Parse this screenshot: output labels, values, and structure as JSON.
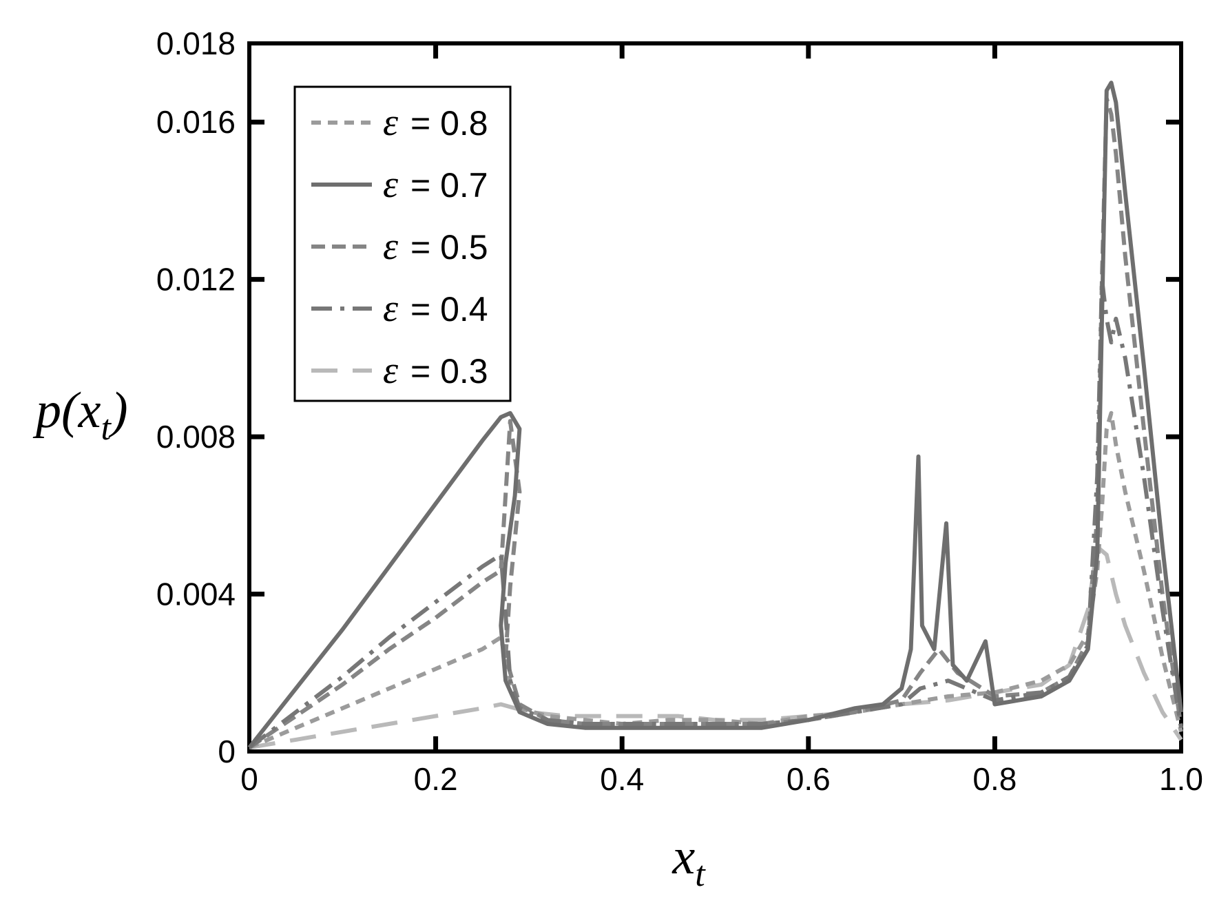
{
  "chart_data": {
    "type": "line",
    "xlabel": "x",
    "xlabel_sub": "t",
    "ylabel_prefix": "p(x",
    "ylabel_sub": "t",
    "ylabel_suffix": ")",
    "xlim": [
      0,
      1.0
    ],
    "ylim": [
      0,
      0.018
    ],
    "xticks": [
      {
        "value": 0,
        "label": "0"
      },
      {
        "value": 0.2,
        "label": "0.2"
      },
      {
        "value": 0.4,
        "label": "0.4"
      },
      {
        "value": 0.6,
        "label": "0.6"
      },
      {
        "value": 0.8,
        "label": "0.8"
      },
      {
        "value": 1.0,
        "label": "1.0"
      }
    ],
    "yticks": [
      {
        "value": 0,
        "label": "0"
      },
      {
        "value": 0.004,
        "label": "0.004"
      },
      {
        "value": 0.008,
        "label": "0.008"
      },
      {
        "value": 0.012,
        "label": "0.012"
      },
      {
        "value": 0.016,
        "label": "0.016"
      },
      {
        "value": 0.018,
        "label": "0.018"
      }
    ],
    "grid": false,
    "legend_position": "top-left",
    "legend_symbol": "ε",
    "series": [
      {
        "name": "ε = 0.8",
        "value_text": "= 0.8",
        "color": "#9b9b9b",
        "dash": "short-dash",
        "points": [
          [
            0.0,
            0.0001
          ],
          [
            0.05,
            0.0006
          ],
          [
            0.1,
            0.0011
          ],
          [
            0.15,
            0.0016
          ],
          [
            0.2,
            0.0021
          ],
          [
            0.25,
            0.0026
          ],
          [
            0.27,
            0.0029
          ],
          [
            0.28,
            0.0018
          ],
          [
            0.29,
            0.0011
          ],
          [
            0.32,
            0.0009
          ],
          [
            0.36,
            0.0008
          ],
          [
            0.4,
            0.0007
          ],
          [
            0.45,
            0.0008
          ],
          [
            0.5,
            0.0008
          ],
          [
            0.55,
            0.0007
          ],
          [
            0.6,
            0.0009
          ],
          [
            0.65,
            0.001
          ],
          [
            0.7,
            0.0012
          ],
          [
            0.75,
            0.0014
          ],
          [
            0.8,
            0.0015
          ],
          [
            0.85,
            0.0018
          ],
          [
            0.88,
            0.0022
          ],
          [
            0.9,
            0.003
          ],
          [
            0.91,
            0.0046
          ],
          [
            0.915,
            0.0062
          ],
          [
            0.92,
            0.0082
          ],
          [
            0.925,
            0.0086
          ],
          [
            0.93,
            0.0078
          ],
          [
            0.94,
            0.0066
          ],
          [
            0.96,
            0.0046
          ],
          [
            0.98,
            0.0024
          ],
          [
            1.0,
            0.0005
          ]
        ]
      },
      {
        "name": "ε = 0.7",
        "value_text": "= 0.7",
        "color": "#6e6e6e",
        "dash": "solid",
        "points": [
          [
            0.0,
            0.0001
          ],
          [
            0.05,
            0.0016
          ],
          [
            0.1,
            0.0031
          ],
          [
            0.15,
            0.0047
          ],
          [
            0.2,
            0.0063
          ],
          [
            0.25,
            0.0079
          ],
          [
            0.27,
            0.0085
          ],
          [
            0.28,
            0.0086
          ],
          [
            0.29,
            0.0082
          ],
          [
            0.285,
            0.0065
          ],
          [
            0.275,
            0.0048
          ],
          [
            0.27,
            0.0032
          ],
          [
            0.275,
            0.0018
          ],
          [
            0.29,
            0.001
          ],
          [
            0.32,
            0.0007
          ],
          [
            0.36,
            0.0006
          ],
          [
            0.4,
            0.0006
          ],
          [
            0.45,
            0.0006
          ],
          [
            0.5,
            0.0006
          ],
          [
            0.55,
            0.0006
          ],
          [
            0.6,
            0.0008
          ],
          [
            0.65,
            0.0011
          ],
          [
            0.68,
            0.0012
          ],
          [
            0.7,
            0.0016
          ],
          [
            0.71,
            0.0026
          ],
          [
            0.718,
            0.0075
          ],
          [
            0.722,
            0.0032
          ],
          [
            0.735,
            0.0026
          ],
          [
            0.748,
            0.0058
          ],
          [
            0.755,
            0.0022
          ],
          [
            0.77,
            0.0018
          ],
          [
            0.79,
            0.0028
          ],
          [
            0.8,
            0.0012
          ],
          [
            0.85,
            0.0014
          ],
          [
            0.88,
            0.0018
          ],
          [
            0.9,
            0.0026
          ],
          [
            0.91,
            0.005
          ],
          [
            0.915,
            0.011
          ],
          [
            0.92,
            0.0168
          ],
          [
            0.925,
            0.017
          ],
          [
            0.93,
            0.0165
          ],
          [
            0.94,
            0.0142
          ],
          [
            0.96,
            0.0098
          ],
          [
            0.98,
            0.0052
          ],
          [
            1.0,
            0.001
          ]
        ]
      },
      {
        "name": "ε = 0.5",
        "value_text": "= 0.5",
        "color": "#858585",
        "dash": "dash",
        "points": [
          [
            0.0,
            0.0001
          ],
          [
            0.05,
            0.0009
          ],
          [
            0.1,
            0.0017
          ],
          [
            0.15,
            0.0026
          ],
          [
            0.2,
            0.0034
          ],
          [
            0.25,
            0.0043
          ],
          [
            0.27,
            0.0046
          ],
          [
            0.28,
            0.0084
          ],
          [
            0.29,
            0.0066
          ],
          [
            0.28,
            0.0042
          ],
          [
            0.275,
            0.0024
          ],
          [
            0.29,
            0.0012
          ],
          [
            0.32,
            0.0008
          ],
          [
            0.36,
            0.0007
          ],
          [
            0.4,
            0.0007
          ],
          [
            0.45,
            0.0007
          ],
          [
            0.5,
            0.0007
          ],
          [
            0.55,
            0.0007
          ],
          [
            0.6,
            0.0008
          ],
          [
            0.65,
            0.001
          ],
          [
            0.7,
            0.0013
          ],
          [
            0.72,
            0.002
          ],
          [
            0.74,
            0.0026
          ],
          [
            0.76,
            0.002
          ],
          [
            0.8,
            0.0014
          ],
          [
            0.85,
            0.0015
          ],
          [
            0.88,
            0.0019
          ],
          [
            0.9,
            0.0028
          ],
          [
            0.91,
            0.006
          ],
          [
            0.915,
            0.012
          ],
          [
            0.92,
            0.0166
          ],
          [
            0.925,
            0.0162
          ],
          [
            0.93,
            0.0152
          ],
          [
            0.94,
            0.0126
          ],
          [
            0.96,
            0.0082
          ],
          [
            0.98,
            0.004
          ],
          [
            1.0,
            0.0006
          ]
        ]
      },
      {
        "name": "ε = 0.4",
        "value_text": "= 0.4",
        "color": "#777777",
        "dash": "dash-dot",
        "points": [
          [
            0.0,
            0.0001
          ],
          [
            0.05,
            0.001
          ],
          [
            0.1,
            0.0019
          ],
          [
            0.15,
            0.0029
          ],
          [
            0.2,
            0.0038
          ],
          [
            0.25,
            0.0047
          ],
          [
            0.27,
            0.005
          ],
          [
            0.275,
            0.0035
          ],
          [
            0.28,
            0.0018
          ],
          [
            0.29,
            0.0011
          ],
          [
            0.32,
            0.0008
          ],
          [
            0.36,
            0.0007
          ],
          [
            0.4,
            0.0007
          ],
          [
            0.45,
            0.0007
          ],
          [
            0.5,
            0.0007
          ],
          [
            0.55,
            0.0007
          ],
          [
            0.6,
            0.0008
          ],
          [
            0.65,
            0.001
          ],
          [
            0.7,
            0.0012
          ],
          [
            0.72,
            0.0016
          ],
          [
            0.75,
            0.0018
          ],
          [
            0.8,
            0.0013
          ],
          [
            0.85,
            0.0015
          ],
          [
            0.88,
            0.0019
          ],
          [
            0.9,
            0.0027
          ],
          [
            0.91,
            0.007
          ],
          [
            0.915,
            0.012
          ],
          [
            0.92,
            0.011
          ],
          [
            0.925,
            0.0104
          ],
          [
            0.93,
            0.011
          ],
          [
            0.94,
            0.01
          ],
          [
            0.96,
            0.007
          ],
          [
            0.98,
            0.0036
          ],
          [
            1.0,
            0.0006
          ]
        ]
      },
      {
        "name": "ε = 0.3",
        "value_text": "= 0.3",
        "color": "#b9b9b9",
        "dash": "long-dash",
        "points": [
          [
            0.0,
            0.0001
          ],
          [
            0.05,
            0.0003
          ],
          [
            0.1,
            0.0005
          ],
          [
            0.15,
            0.0007
          ],
          [
            0.2,
            0.0009
          ],
          [
            0.25,
            0.0011
          ],
          [
            0.27,
            0.0012
          ],
          [
            0.3,
            0.001
          ],
          [
            0.34,
            0.0009
          ],
          [
            0.38,
            0.0009
          ],
          [
            0.42,
            0.0009
          ],
          [
            0.46,
            0.0009
          ],
          [
            0.5,
            0.0008
          ],
          [
            0.55,
            0.0008
          ],
          [
            0.6,
            0.0009
          ],
          [
            0.65,
            0.001
          ],
          [
            0.7,
            0.0012
          ],
          [
            0.75,
            0.0013
          ],
          [
            0.8,
            0.0015
          ],
          [
            0.85,
            0.0017
          ],
          [
            0.88,
            0.0022
          ],
          [
            0.9,
            0.0036
          ],
          [
            0.91,
            0.0052
          ],
          [
            0.92,
            0.005
          ],
          [
            0.93,
            0.004
          ],
          [
            0.94,
            0.0032
          ],
          [
            0.96,
            0.002
          ],
          [
            0.98,
            0.001
          ],
          [
            1.0,
            0.0003
          ]
        ]
      }
    ]
  }
}
